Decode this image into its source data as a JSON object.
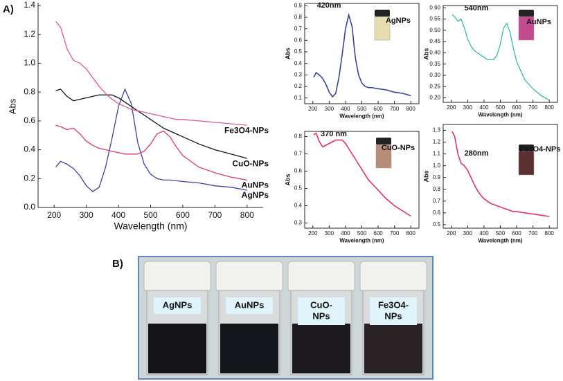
{
  "chart_data": [
    {
      "type": "line",
      "xlabel": "Wavelength (nm)",
      "ylabel": "Abs",
      "x": [
        205,
        220,
        240,
        260,
        280,
        300,
        320,
        340,
        360,
        380,
        400,
        420,
        440,
        460,
        480,
        500,
        520,
        540,
        560,
        580,
        600,
        650,
        700,
        750,
        800
      ],
      "xlim": [
        150,
        850
      ],
      "xticks": [
        200,
        300,
        400,
        500,
        600,
        700,
        800
      ],
      "ylim": [
        0,
        1.4
      ],
      "yticks": [
        {
          "value": 0,
          "label": "0.0"
        },
        0.2,
        0.4,
        0.6,
        0.8,
        {
          "value": 1,
          "label": "1.0"
        },
        1.2,
        1.4
      ],
      "series": [
        {
          "name": "AgNPs",
          "color": "#3b3fa0",
          "values": [
            0.28,
            0.32,
            0.3,
            0.27,
            0.22,
            0.15,
            0.11,
            0.14,
            0.28,
            0.48,
            0.7,
            0.82,
            0.72,
            0.45,
            0.3,
            0.23,
            0.2,
            0.19,
            0.19,
            0.185,
            0.18,
            0.17,
            0.15,
            0.14,
            0.12
          ]
        },
        {
          "name": "AuNPs",
          "color": "#d63a6e",
          "values": [
            0.57,
            0.56,
            0.54,
            0.55,
            0.51,
            0.46,
            0.43,
            0.41,
            0.4,
            0.39,
            0.38,
            0.37,
            0.37,
            0.37,
            0.39,
            0.44,
            0.51,
            0.53,
            0.49,
            0.42,
            0.36,
            0.28,
            0.24,
            0.21,
            0.19
          ]
        },
        {
          "name": "CuO-NPs",
          "color": "#111111",
          "values": [
            0.81,
            0.82,
            0.77,
            0.74,
            0.75,
            0.76,
            0.77,
            0.78,
            0.78,
            0.78,
            0.76,
            0.73,
            0.7,
            0.67,
            0.64,
            0.61,
            0.58,
            0.55,
            0.53,
            0.51,
            0.49,
            0.44,
            0.4,
            0.37,
            0.34
          ]
        },
        {
          "name": "Fe3O4-NPs",
          "color": "#d85a9a",
          "values": [
            1.29,
            1.25,
            1.1,
            1.02,
            1.0,
            0.96,
            0.9,
            0.84,
            0.79,
            0.75,
            0.72,
            0.7,
            0.68,
            0.67,
            0.66,
            0.65,
            0.64,
            0.63,
            0.62,
            0.61,
            0.61,
            0.6,
            0.59,
            0.58,
            0.57
          ]
        }
      ]
    },
    {
      "type": "line",
      "xlabel": "Wavelength (nm)",
      "ylabel": "Abs",
      "annotations": [
        "420nm",
        "AgNPs"
      ],
      "x": [
        205,
        220,
        240,
        260,
        280,
        300,
        320,
        340,
        360,
        380,
        400,
        420,
        440,
        460,
        480,
        500,
        520,
        540,
        560,
        580,
        600,
        650,
        700,
        750,
        800
      ],
      "xlim": [
        150,
        850
      ],
      "xticks": [
        200,
        300,
        400,
        500,
        600,
        700,
        800
      ],
      "ylim": [
        0.05,
        0.92
      ],
      "yticks": [
        0.1,
        0.2,
        0.3,
        0.4,
        0.5,
        0.6,
        0.7,
        0.8,
        0.9
      ],
      "series": [
        {
          "color": "#3b3fa0",
          "values": [
            0.28,
            0.32,
            0.3,
            0.27,
            0.22,
            0.15,
            0.11,
            0.14,
            0.28,
            0.48,
            0.7,
            0.82,
            0.72,
            0.45,
            0.3,
            0.23,
            0.2,
            0.19,
            0.19,
            0.185,
            0.18,
            0.17,
            0.15,
            0.14,
            0.12
          ]
        }
      ]
    },
    {
      "type": "line",
      "xlabel": "Wavelength (nm)",
      "ylabel": "Abs",
      "annotations": [
        "540nm",
        "AuNPs"
      ],
      "x": [
        205,
        220,
        240,
        260,
        280,
        300,
        320,
        340,
        360,
        380,
        400,
        420,
        440,
        460,
        480,
        500,
        520,
        540,
        560,
        580,
        600,
        650,
        700,
        750,
        800
      ],
      "xlim": [
        150,
        850
      ],
      "xticks": [
        200,
        300,
        400,
        500,
        600,
        700,
        800
      ],
      "ylim": [
        0.18,
        0.61
      ],
      "yticks": [
        {
          "value": 0.2,
          "label": "0.20"
        },
        0.25,
        {
          "value": 0.3,
          "label": "0.30"
        },
        0.35,
        {
          "value": 0.4,
          "label": "0.40"
        },
        0.45,
        {
          "value": 0.5,
          "label": "0.50"
        },
        0.55,
        {
          "value": 0.6,
          "label": "0.60"
        }
      ],
      "series": [
        {
          "color": "#2bb5a8",
          "values": [
            0.57,
            0.56,
            0.54,
            0.55,
            0.51,
            0.46,
            0.43,
            0.41,
            0.4,
            0.39,
            0.38,
            0.37,
            0.37,
            0.37,
            0.39,
            0.44,
            0.51,
            0.53,
            0.49,
            0.42,
            0.36,
            0.28,
            0.24,
            0.21,
            0.19
          ]
        }
      ]
    },
    {
      "type": "line",
      "xlabel": "Wavelength (nm)",
      "ylabel": "Abs",
      "annotations": [
        "370 nm",
        "CuO-NPs"
      ],
      "x": [
        205,
        220,
        240,
        260,
        280,
        300,
        320,
        340,
        360,
        380,
        400,
        420,
        440,
        460,
        480,
        500,
        520,
        540,
        560,
        580,
        600,
        650,
        700,
        750,
        800
      ],
      "xlim": [
        150,
        850
      ],
      "xticks": [
        200,
        300,
        400,
        500,
        600,
        700,
        800
      ],
      "ylim": [
        0.27,
        0.83
      ],
      "yticks": [
        0.3,
        0.4,
        0.5,
        0.6,
        0.7,
        0.8
      ],
      "series": [
        {
          "color": "#e0306a",
          "values": [
            0.81,
            0.82,
            0.77,
            0.74,
            0.75,
            0.76,
            0.77,
            0.78,
            0.78,
            0.78,
            0.76,
            0.73,
            0.7,
            0.67,
            0.64,
            0.61,
            0.58,
            0.55,
            0.53,
            0.51,
            0.49,
            0.44,
            0.4,
            0.37,
            0.34
          ]
        }
      ]
    },
    {
      "type": "line",
      "xlabel": "Wavelength (nm)",
      "ylabel": "Abs",
      "annotations": [
        "280nm",
        "Fe3O4-NPs"
      ],
      "x": [
        205,
        220,
        240,
        260,
        280,
        300,
        320,
        340,
        360,
        380,
        400,
        420,
        440,
        460,
        480,
        500,
        520,
        540,
        560,
        580,
        600,
        650,
        700,
        750,
        800
      ],
      "xlim": [
        150,
        850
      ],
      "xticks": [
        200,
        300,
        400,
        500,
        600,
        700,
        800
      ],
      "ylim": [
        0.47,
        1.35
      ],
      "yticks": [
        0.5,
        0.6,
        0.7,
        0.8,
        0.9,
        {
          "value": 1,
          "label": "1.0"
        },
        1.1,
        1.2,
        1.3
      ],
      "series": [
        {
          "color": "#e0306a",
          "values": [
            1.29,
            1.25,
            1.1,
            1.02,
            1.0,
            0.96,
            0.9,
            0.84,
            0.79,
            0.75,
            0.72,
            0.7,
            0.68,
            0.67,
            0.66,
            0.65,
            0.64,
            0.63,
            0.62,
            0.61,
            0.61,
            0.6,
            0.59,
            0.58,
            0.57
          ]
        }
      ]
    }
  ],
  "figure": {
    "panel_a": "A)",
    "panel_b": "B)",
    "jar_labels": [
      [
        "AgNPs"
      ],
      [
        "AuNPs"
      ],
      [
        "CuO-",
        "NPs"
      ],
      [
        "Fe3O4-",
        "NPs"
      ]
    ]
  }
}
